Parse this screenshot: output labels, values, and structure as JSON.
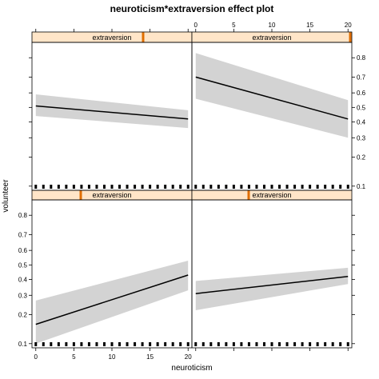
{
  "chart_data": {
    "type": "line",
    "title": "neuroticism*extraversion effect plot",
    "xlabel": "neuroticism",
    "ylabel": "volunteer",
    "xlim": [
      -0.5,
      20.5
    ],
    "x_ticks": [
      0,
      5,
      10,
      15,
      20
    ],
    "y_ticks": [
      0.1,
      0.2,
      0.3,
      0.4,
      0.5,
      0.6,
      0.7,
      0.8
    ],
    "y_tick_labels": [
      "0.1",
      "0.2",
      "0.3",
      "0.4",
      "0.5",
      "0.6",
      "0.7",
      "0.8"
    ],
    "y_scale": "logit",
    "ylim": [
      0.09,
      0.86
    ],
    "layout": "2x2",
    "strip_label": "extraversion",
    "strip_color": "#ffe5c8",
    "indicator_color": "#e06e00",
    "line_color": "#000000",
    "band_color": "#d3d3d3",
    "grid": false,
    "panels": [
      {
        "position": "bottom-left",
        "extraversion_indicator": 0.305,
        "x": [
          0,
          20
        ],
        "y": [
          0.16,
          0.43
        ],
        "lower": [
          0.1,
          0.33
        ],
        "upper": [
          0.27,
          0.53
        ]
      },
      {
        "position": "bottom-right",
        "extraversion_indicator": 0.355,
        "x": [
          0,
          20
        ],
        "y": [
          0.31,
          0.42
        ],
        "lower": [
          0.22,
          0.37
        ],
        "upper": [
          0.39,
          0.48
        ]
      },
      {
        "position": "top-left",
        "extraversion_indicator": 0.695,
        "x": [
          0,
          20
        ],
        "y": [
          0.51,
          0.42
        ],
        "lower": [
          0.44,
          0.36
        ],
        "upper": [
          0.59,
          0.48
        ]
      },
      {
        "position": "top-right",
        "extraversion_indicator": 0.99,
        "x": [
          0,
          20
        ],
        "y": [
          0.7,
          0.42
        ],
        "lower": [
          0.56,
          0.3
        ],
        "upper": [
          0.82,
          0.55
        ]
      }
    ]
  }
}
